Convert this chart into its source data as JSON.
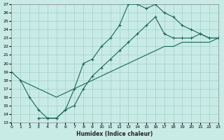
{
  "xlabel": "Humidex (Indice chaleur)",
  "xlim": [
    0,
    23
  ],
  "ylim": [
    13,
    27
  ],
  "xticks": [
    0,
    1,
    2,
    3,
    4,
    5,
    6,
    7,
    8,
    9,
    10,
    11,
    12,
    13,
    14,
    15,
    16,
    17,
    18,
    19,
    20,
    21,
    22,
    23
  ],
  "yticks": [
    13,
    14,
    15,
    16,
    17,
    18,
    19,
    20,
    21,
    22,
    23,
    24,
    25,
    26,
    27
  ],
  "background_color": "#c8ebe6",
  "grid_color": "#a0d0c8",
  "line_color": "#1a6655",
  "line1_x": [
    0,
    1,
    2,
    3,
    4,
    5,
    6,
    7,
    8,
    9,
    10,
    11,
    12,
    13,
    14,
    15,
    16,
    17,
    18,
    19,
    20,
    21,
    22,
    23
  ],
  "line1_y": [
    19.0,
    18.0,
    16.0,
    14.5,
    13.5,
    13.5,
    14.5,
    17.0,
    20.0,
    20.5,
    22.0,
    23.0,
    24.5,
    27.0,
    27.0,
    26.5,
    27.0,
    26.0,
    25.5,
    24.5,
    24.0,
    23.5,
    23.0,
    23.0
  ],
  "line2_x": [
    3,
    4,
    5,
    6,
    7,
    8,
    9,
    10,
    11,
    12,
    13,
    14,
    15,
    16,
    17,
    18,
    19,
    20,
    21,
    22,
    23
  ],
  "line2_y": [
    13.5,
    13.5,
    13.5,
    14.5,
    15.0,
    17.0,
    18.5,
    19.5,
    20.5,
    21.5,
    22.5,
    23.5,
    24.5,
    25.5,
    23.5,
    23.0,
    23.0,
    23.0,
    23.5,
    23.0,
    23.0
  ],
  "line3_x": [
    1,
    2,
    3,
    4,
    5,
    6,
    7,
    8,
    9,
    10,
    11,
    12,
    13,
    14,
    15,
    16,
    17,
    18,
    19,
    20,
    21,
    22,
    23
  ],
  "line3_y": [
    18.0,
    17.5,
    17.0,
    16.5,
    16.0,
    16.5,
    17.0,
    17.5,
    18.0,
    18.5,
    19.0,
    19.5,
    20.0,
    20.5,
    21.0,
    21.5,
    22.0,
    22.0,
    22.5,
    22.5,
    22.5,
    22.5,
    23.0
  ]
}
